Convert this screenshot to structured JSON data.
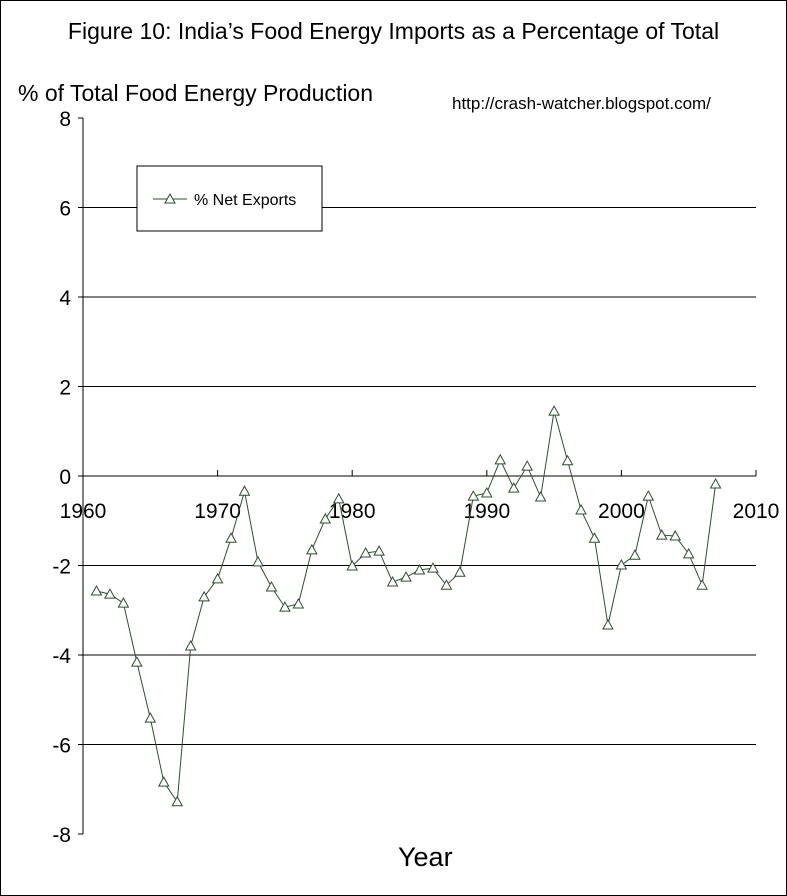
{
  "chart_data": {
    "type": "line",
    "title": "Figure 10: India’s Food Energy Imports as a Percentage of  Total",
    "ylabel": "% of Total Food Energy Production",
    "xlabel": "Year",
    "source_note": "http://crash-watcher.blogspot.com/",
    "xlim": [
      1960,
      2010
    ],
    "ylim": [
      -8,
      8
    ],
    "xticks": [
      1960,
      1970,
      1980,
      1990,
      2000,
      2010
    ],
    "yticks": [
      8,
      6,
      4,
      2,
      0,
      -2,
      -4,
      -6,
      -8
    ],
    "grid": "horizontal",
    "legend": "top-left",
    "series": [
      {
        "name": "% Net Exports",
        "color": "#2f4f2f",
        "marker": "triangle",
        "x": [
          1961,
          1962,
          1963,
          1964,
          1965,
          1966,
          1967,
          1968,
          1969,
          1970,
          1971,
          1972,
          1973,
          1974,
          1975,
          1976,
          1977,
          1978,
          1979,
          1980,
          1981,
          1982,
          1983,
          1984,
          1985,
          1986,
          1987,
          1988,
          1989,
          1990,
          1991,
          1992,
          1993,
          1994,
          1995,
          1996,
          1997,
          1998,
          1999,
          2000,
          2001,
          2002,
          2003,
          2004,
          2005,
          2006,
          2007
        ],
        "y": [
          -2.57,
          -2.64,
          -2.84,
          -4.16,
          -5.41,
          -6.84,
          -7.28,
          -3.8,
          -2.7,
          -2.3,
          -1.39,
          -0.34,
          -1.92,
          -2.48,
          -2.93,
          -2.86,
          -1.65,
          -0.96,
          -0.51,
          -2.01,
          -1.72,
          -1.68,
          -2.37,
          -2.26,
          -2.1,
          -2.06,
          -2.44,
          -2.15,
          -0.45,
          -0.38,
          0.36,
          -0.27,
          0.22,
          -0.47,
          1.45,
          0.34,
          -0.76,
          -1.39,
          -3.33,
          -1.99,
          -1.77,
          -0.45,
          -1.32,
          -1.34,
          -1.74,
          -2.44,
          -0.18
        ]
      }
    ]
  }
}
